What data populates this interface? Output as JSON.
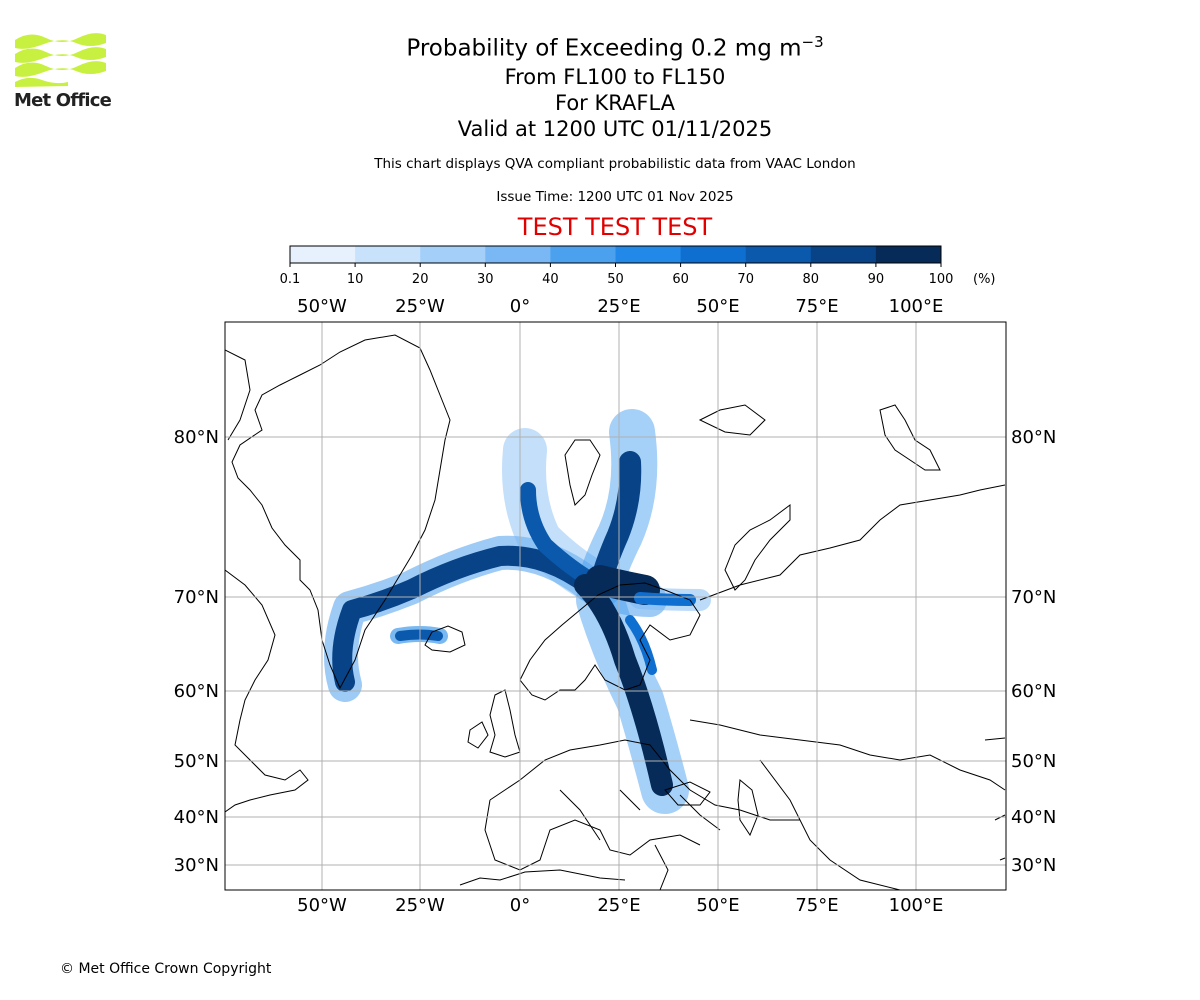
{
  "logo": {
    "name": "Met Office"
  },
  "header": {
    "title_prefix": "Probability of Exceeding 0.2 mg m",
    "title_exponent": "−3",
    "level_range": "From FL100 to FL150",
    "volcano": "For KRAFLA",
    "valid_time": "Valid at 1200 UTC 01/11/2025",
    "disclaimer": "This chart displays QVA compliant probabilistic data from VAAC London",
    "issue_time": "Issue Time: 1200 UTC 01 Nov 2025",
    "test_banner": "TEST TEST TEST"
  },
  "colorbar": {
    "unit": "(%)",
    "ticks": [
      "0.1",
      "10",
      "20",
      "30",
      "40",
      "50",
      "60",
      "70",
      "80",
      "90",
      "100"
    ],
    "colors": [
      "#e6f1fd",
      "#c9e2fb",
      "#a4cff8",
      "#79b8f4",
      "#4ca1ef",
      "#2289e8",
      "#0f6fd1",
      "#0a59ac",
      "#074386",
      "#062b59"
    ]
  },
  "chart_data": {
    "type": "map",
    "projection": "polar stereographic (north)",
    "quantity": "Probability of ash concentration exceeding 0.2 mg m-3 (%)",
    "longitude_labels": [
      "50°W",
      "25°W",
      "0°",
      "25°E",
      "50°E",
      "75°E",
      "100°E"
    ],
    "latitude_labels": [
      "30°N",
      "40°N",
      "50°N",
      "60°N",
      "70°N",
      "80°N"
    ],
    "source_volcano": "KRAFLA",
    "plume_summary": [
      {
        "region": "Southern Greenland to Iceland",
        "probability_pct": [
          80,
          100
        ]
      },
      {
        "region": "Iceland east across Norwegian Sea to northern Norway",
        "probability_pct": [
          80,
          100
        ]
      },
      {
        "region": "Norwegian Sea north towards Svalbard",
        "probability_pct": [
          30,
          90
        ]
      },
      {
        "region": "Barents Sea to Svalbard",
        "probability_pct": [
          60,
          100
        ]
      },
      {
        "region": "Scandinavia south through Baltic states to Black Sea",
        "probability_pct": [
          80,
          100
        ]
      },
      {
        "region": "Kola Peninsula / White Sea",
        "probability_pct": [
          10,
          60
        ]
      }
    ]
  },
  "footer": {
    "copyright": "© Met Office Crown Copyright"
  }
}
